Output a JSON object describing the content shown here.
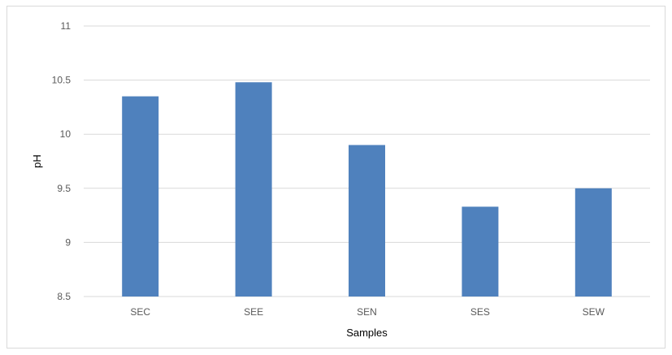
{
  "chart_data": {
    "type": "bar",
    "title": "",
    "xlabel": "Samples",
    "ylabel": "pH",
    "categories": [
      "SEC",
      "SEE",
      "SEN",
      "SES",
      "SEW"
    ],
    "series": [
      {
        "values": [
          10.35,
          10.48,
          9.9,
          9.33,
          9.5
        ],
        "color": "#4f81bd"
      }
    ],
    "ylim": [
      8.5,
      11
    ],
    "yticks": [
      "8.5",
      "9",
      "9.5",
      "10",
      "10.5",
      "11"
    ],
    "grid": true,
    "legend": "none"
  },
  "colors": {
    "bar": "#4f81bd",
    "grid": "#d9d9d9",
    "tick_text": "#595959"
  }
}
